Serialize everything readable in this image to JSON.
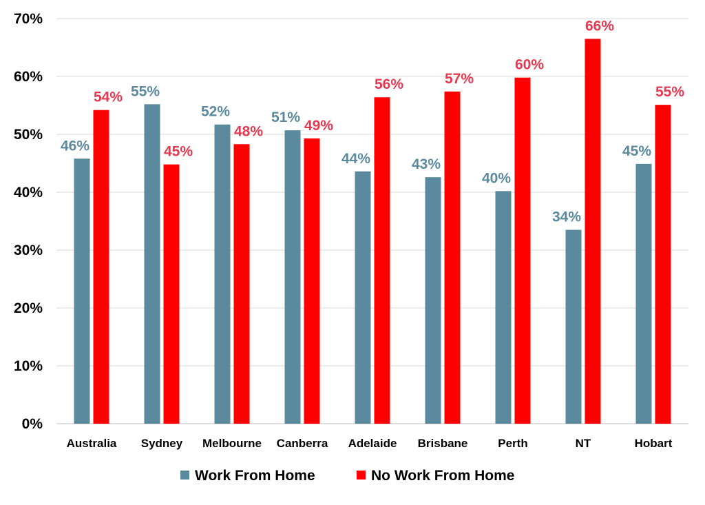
{
  "chart_data": {
    "type": "bar",
    "categories": [
      "Australia",
      "Sydney",
      "Melbourne",
      "Canberra",
      "Adelaide",
      "Brisbane",
      "Perth",
      "NT",
      "Hobart"
    ],
    "series": [
      {
        "name": "Work From Home",
        "color": "#5b8a9e",
        "label_color": "#5b8a9e",
        "values": [
          45.8,
          55.2,
          51.7,
          50.7,
          43.6,
          42.6,
          40.2,
          33.5,
          44.9
        ],
        "data_labels": [
          "46%",
          "55%",
          "52%",
          "51%",
          "44%",
          "43%",
          "40%",
          "34%",
          "45%"
        ]
      },
      {
        "name": "No Work From Home",
        "color": "#ff0000",
        "label_color": "#e8384f",
        "values": [
          54.2,
          44.8,
          48.3,
          49.3,
          56.4,
          57.4,
          59.8,
          66.5,
          55.1
        ],
        "data_labels": [
          "54%",
          "45%",
          "48%",
          "49%",
          "56%",
          "57%",
          "60%",
          "66%",
          "55%"
        ]
      }
    ],
    "y_ticks": [
      "0%",
      "10%",
      "20%",
      "30%",
      "40%",
      "50%",
      "60%",
      "70%"
    ],
    "ylim": [
      0,
      70
    ],
    "grid": true,
    "legend_position": "bottom",
    "title": "",
    "xlabel": "",
    "ylabel": ""
  }
}
